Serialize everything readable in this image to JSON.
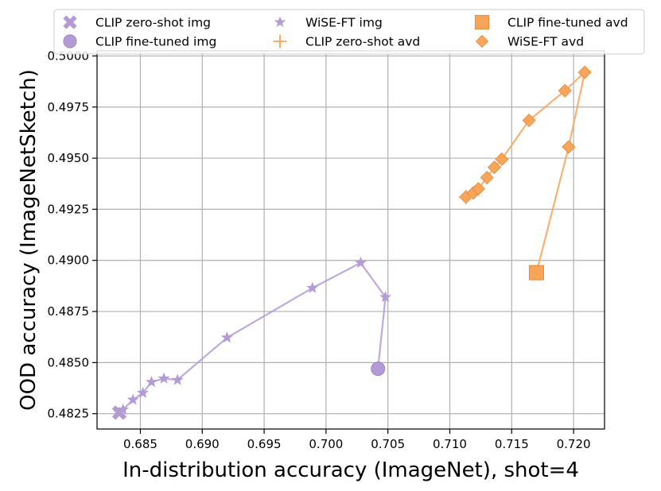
{
  "chart_data": {
    "type": "line",
    "title": "",
    "xlabel": "In-distribution accuracy (ImageNet), shot=4",
    "ylabel": "OOD accuracy (ImageNetSketch)",
    "xlim": [
      0.6815,
      0.7225
    ],
    "ylim": [
      0.48175,
      0.50025
    ],
    "x_ticks": [
      0.685,
      0.69,
      0.695,
      0.7,
      0.705,
      0.71,
      0.715,
      0.72
    ],
    "x_tick_labels": [
      "0.685",
      "0.690",
      "0.695",
      "0.700",
      "0.705",
      "0.710",
      "0.715",
      "0.720"
    ],
    "y_ticks": [
      0.4825,
      0.485,
      0.4875,
      0.49,
      0.4925,
      0.495,
      0.4975,
      0.5
    ],
    "y_tick_labels": [
      "0.4825",
      "0.4850",
      "0.4875",
      "0.4900",
      "0.4925",
      "0.4950",
      "0.4975",
      "0.5000"
    ],
    "grid": true,
    "legend_position": "top",
    "colors": {
      "img": "#b39bd6",
      "avd": "#f8a55a"
    },
    "legend": [
      {
        "label": "CLIP zero-shot img",
        "marker": "x",
        "color": "#b39bd6"
      },
      {
        "label": "CLIP fine-tuned img",
        "marker": "o",
        "color": "#b39bd6"
      },
      {
        "label": "WiSE-FT img",
        "marker": "star",
        "color": "#b39bd6"
      },
      {
        "label": "CLIP zero-shot avd",
        "marker": "plus",
        "color": "#f8a55a"
      },
      {
        "label": "CLIP fine-tuned avd",
        "marker": "square",
        "color": "#f8a55a"
      },
      {
        "label": "WiSE-FT avd",
        "marker": "diamond",
        "color": "#f8a55a"
      }
    ],
    "series": [
      {
        "name": "WiSE-FT img",
        "marker": "star",
        "color": "#b39bd6",
        "x": [
          0.6833,
          0.6836,
          0.6844,
          0.6852,
          0.6859,
          0.6869,
          0.688,
          0.692,
          0.6989,
          0.7028,
          0.7048,
          0.7042
        ],
        "y": [
          0.48255,
          0.4827,
          0.48318,
          0.48352,
          0.48405,
          0.48422,
          0.48415,
          0.48622,
          0.48865,
          0.48988,
          0.4882,
          0.4847
        ]
      },
      {
        "name": "WiSE-FT avd",
        "marker": "diamond",
        "color": "#f8a55a",
        "x": [
          0.7113,
          0.7119,
          0.7123,
          0.713,
          0.7136,
          0.7142,
          0.7164,
          0.7193,
          0.7209,
          0.7196,
          0.717
        ],
        "y": [
          0.4931,
          0.4933,
          0.4935,
          0.49405,
          0.49455,
          0.49495,
          0.49685,
          0.4983,
          0.4992,
          0.49555,
          0.4894
        ]
      },
      {
        "name": "CLIP zero-shot img",
        "marker": "x",
        "color": "#b39bd6",
        "x": [
          0.6833
        ],
        "y": [
          0.48255
        ]
      },
      {
        "name": "CLIP fine-tuned img",
        "marker": "o",
        "color": "#b39bd6",
        "x": [
          0.7042
        ],
        "y": [
          0.4847
        ]
      },
      {
        "name": "CLIP zero-shot avd",
        "marker": "plus",
        "color": "#f8a55a",
        "x": [
          0.7113
        ],
        "y": [
          0.4931
        ]
      },
      {
        "name": "CLIP fine-tuned avd",
        "marker": "square",
        "color": "#f8a55a",
        "x": [
          0.717
        ],
        "y": [
          0.4894
        ]
      }
    ]
  }
}
